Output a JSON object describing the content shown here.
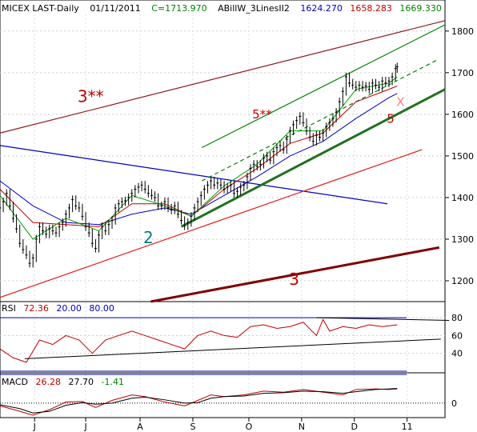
{
  "header": {
    "symbol": "MICEX LAST-Daily",
    "date": "01/11/2011",
    "close": "C=1713.970",
    "indicator": "ABillW_3LinesII2",
    "values": [
      "1624.270",
      "1658.283",
      "1669.330"
    ],
    "colors": {
      "close": "#008000",
      "v1": "#0000c0",
      "v2": "#c00000",
      "v3": "#008000"
    }
  },
  "rsi_panel": {
    "name": "RSI",
    "value": "72.36",
    "low": "20.00",
    "high": "80.00"
  },
  "macd_panel": {
    "name": "MACD",
    "value": "26.28",
    "signal": "27.70",
    "hist": "-1.41"
  },
  "chart_data": [
    {
      "type": "candlestick",
      "title": "MICEX LAST-Daily",
      "ylim": [
        1150,
        1840
      ],
      "y_ticks": [
        "1800",
        "1700",
        "1600",
        "1500",
        "1400",
        "1300",
        "1200"
      ],
      "y_tick_values": [
        1800,
        1700,
        1600,
        1500,
        1400,
        1300,
        1200
      ],
      "x_ticks": [
        "J",
        "J",
        "A",
        "S",
        "O",
        "N",
        "D",
        "11"
      ],
      "x_tick_days": [
        42,
        104,
        170,
        234,
        302,
        366,
        430,
        494
      ],
      "x_range_days": [
        0,
        540
      ],
      "close_series": [
        [
          0,
          1375
        ],
        [
          4,
          1390
        ],
        [
          8,
          1410
        ],
        [
          12,
          1380
        ],
        [
          16,
          1350
        ],
        [
          20,
          1325
        ],
        [
          24,
          1290
        ],
        [
          28,
          1275
        ],
        [
          32,
          1262
        ],
        [
          36,
          1242
        ],
        [
          40,
          1255
        ],
        [
          44,
          1300
        ],
        [
          48,
          1330
        ],
        [
          52,
          1320
        ],
        [
          56,
          1312
        ],
        [
          60,
          1325
        ],
        [
          64,
          1320
        ],
        [
          68,
          1315
        ],
        [
          72,
          1330
        ],
        [
          76,
          1340
        ],
        [
          80,
          1360
        ],
        [
          84,
          1375
        ],
        [
          88,
          1395
        ],
        [
          92,
          1380
        ],
        [
          96,
          1375
        ],
        [
          100,
          1355
        ],
        [
          104,
          1330
        ],
        [
          108,
          1315
        ],
        [
          112,
          1290
        ],
        [
          116,
          1278
        ],
        [
          120,
          1310
        ],
        [
          124,
          1330
        ],
        [
          128,
          1320
        ],
        [
          132,
          1335
        ],
        [
          136,
          1345
        ],
        [
          140,
          1375
        ],
        [
          144,
          1385
        ],
        [
          148,
          1390
        ],
        [
          152,
          1392
        ],
        [
          156,
          1400
        ],
        [
          160,
          1410
        ],
        [
          164,
          1420
        ],
        [
          168,
          1425
        ],
        [
          172,
          1430
        ],
        [
          176,
          1420
        ],
        [
          180,
          1410
        ],
        [
          184,
          1405
        ],
        [
          188,
          1400
        ],
        [
          192,
          1380
        ],
        [
          196,
          1380
        ],
        [
          200,
          1390
        ],
        [
          204,
          1375
        ],
        [
          208,
          1370
        ],
        [
          212,
          1380
        ],
        [
          216,
          1360
        ],
        [
          220,
          1345
        ],
        [
          224,
          1332
        ],
        [
          228,
          1340
        ],
        [
          232,
          1355
        ],
        [
          236,
          1375
        ],
        [
          240,
          1390
        ],
        [
          244,
          1405
        ],
        [
          248,
          1420
        ],
        [
          252,
          1430
        ],
        [
          256,
          1440
        ],
        [
          260,
          1430
        ],
        [
          264,
          1435
        ],
        [
          268,
          1430
        ],
        [
          272,
          1420
        ],
        [
          276,
          1425
        ],
        [
          280,
          1430
        ],
        [
          284,
          1410
        ],
        [
          288,
          1415
        ],
        [
          292,
          1425
        ],
        [
          296,
          1430
        ],
        [
          300,
          1450
        ],
        [
          304,
          1470
        ],
        [
          308,
          1480
        ],
        [
          312,
          1475
        ],
        [
          316,
          1480
        ],
        [
          320,
          1495
        ],
        [
          324,
          1500
        ],
        [
          328,
          1490
        ],
        [
          332,
          1510
        ],
        [
          336,
          1520
        ],
        [
          340,
          1525
        ],
        [
          344,
          1515
        ],
        [
          348,
          1540
        ],
        [
          352,
          1560
        ],
        [
          356,
          1575
        ],
        [
          360,
          1585
        ],
        [
          364,
          1595
        ],
        [
          368,
          1580
        ],
        [
          372,
          1560
        ],
        [
          376,
          1545
        ],
        [
          380,
          1535
        ],
        [
          384,
          1550
        ],
        [
          388,
          1545
        ],
        [
          392,
          1555
        ],
        [
          396,
          1570
        ],
        [
          400,
          1580
        ],
        [
          404,
          1590
        ],
        [
          408,
          1605
        ],
        [
          412,
          1630
        ],
        [
          416,
          1655
        ],
        [
          420,
          1690
        ],
        [
          424,
          1675
        ],
        [
          428,
          1670
        ],
        [
          432,
          1665
        ],
        [
          436,
          1670
        ],
        [
          440,
          1665
        ],
        [
          444,
          1668
        ],
        [
          448,
          1660
        ],
        [
          452,
          1675
        ],
        [
          456,
          1670
        ],
        [
          460,
          1665
        ],
        [
          464,
          1680
        ],
        [
          468,
          1675
        ],
        [
          472,
          1680
        ],
        [
          476,
          1690
        ],
        [
          480,
          1710
        ],
        [
          482,
          1714
        ]
      ],
      "series": [
        {
          "values": [
            [
              0,
              1440
            ],
            [
              40,
              1380
            ],
            [
              80,
              1340
            ],
            [
              120,
              1335
            ],
            [
              160,
              1360
            ],
            [
              200,
              1375
            ],
            [
              232,
              1360
            ],
            [
              272,
              1405
            ],
            [
              312,
              1450
            ],
            [
              352,
              1500
            ],
            [
              392,
              1535
            ],
            [
              432,
              1590
            ],
            [
              472,
              1640
            ],
            [
              482,
              1650
            ]
          ]
        },
        {
          "values": [
            [
              0,
              1420
            ],
            [
              40,
              1340
            ],
            [
              80,
              1335
            ],
            [
              120,
              1330
            ],
            [
              160,
              1385
            ],
            [
              200,
              1385
            ],
            [
              232,
              1355
            ],
            [
              272,
              1420
            ],
            [
              312,
              1470
            ],
            [
              352,
              1530
            ],
            [
              392,
              1555
            ],
            [
              432,
              1630
            ],
            [
              472,
              1660
            ],
            [
              482,
              1668
            ]
          ]
        },
        {
          "values": [
            [
              0,
              1405
            ],
            [
              40,
              1300
            ],
            [
              80,
              1350
            ],
            [
              120,
              1320
            ],
            [
              160,
              1405
            ],
            [
              200,
              1380
            ],
            [
              232,
              1355
            ],
            [
              272,
              1428
            ],
            [
              312,
              1480
            ],
            [
              352,
              1560
            ],
            [
              392,
              1560
            ],
            [
              432,
              1660
            ],
            [
              472,
              1675
            ],
            [
              482,
              1690
            ]
          ]
        }
      ],
      "lines": [
        {
          "label": "3**",
          "color": "#8b1a1a",
          "from": [
            0,
            1555
          ],
          "to": [
            540,
            1825
          ]
        },
        {
          "label": "",
          "color": "#0000c0",
          "from": [
            0,
            1525
          ],
          "to": [
            470,
            1385
          ]
        },
        {
          "label": "",
          "color": "#e02020",
          "from": [
            0,
            1160
          ],
          "to": [
            512,
            1515
          ]
        },
        {
          "label": "3",
          "color": "#800000",
          "from": [
            183,
            1100
          ],
          "to": [
            533,
            1280
          ]
        },
        {
          "label": "5**",
          "color": "#008000",
          "from": [
            245,
            1520
          ],
          "to": [
            540,
            1815
          ]
        },
        {
          "label": "",
          "color": "#008000",
          "dashed": true,
          "from": [
            245,
            1440
          ],
          "to": [
            530,
            1730
          ]
        },
        {
          "label": "2",
          "color": "#207020",
          "from": [
            220,
            1330
          ],
          "to": [
            540,
            1660
          ]
        }
      ],
      "annotations": [
        {
          "text": "3**",
          "day": 110,
          "price": 1630,
          "color": "#c00000"
        },
        {
          "text": "5**",
          "day": 318,
          "price": 1590,
          "color": "#c00000"
        },
        {
          "text": "2",
          "day": 180,
          "price": 1290,
          "color": "#008080"
        },
        {
          "text": "3",
          "day": 357,
          "price": 1190,
          "color": "#c00000"
        },
        {
          "text": "5",
          "day": 474,
          "price": 1580,
          "color": "#c00000"
        },
        {
          "text": "X",
          "day": 486,
          "price": 1620,
          "color": "#ff8080"
        }
      ]
    },
    {
      "type": "line",
      "title": "RSI",
      "ylim": [
        20,
        90
      ],
      "y_ticks": [
        "80",
        "60",
        "40"
      ],
      "y_tick_values": [
        80,
        60,
        40
      ],
      "series": [
        {
          "name": "RSI",
          "values": [
            [
              0,
              45
            ],
            [
              16,
              35
            ],
            [
              32,
              30
            ],
            [
              48,
              55
            ],
            [
              64,
              50
            ],
            [
              80,
              60
            ],
            [
              96,
              55
            ],
            [
              112,
              40
            ],
            [
              128,
              55
            ],
            [
              144,
              60
            ],
            [
              160,
              65
            ],
            [
              176,
              60
            ],
            [
              192,
              55
            ],
            [
              208,
              50
            ],
            [
              224,
              45
            ],
            [
              240,
              60
            ],
            [
              256,
              65
            ],
            [
              272,
              60
            ],
            [
              288,
              58
            ],
            [
              304,
              70
            ],
            [
              320,
              72
            ],
            [
              336,
              68
            ],
            [
              352,
              70
            ],
            [
              368,
              75
            ],
            [
              384,
              60
            ],
            [
              392,
              78
            ],
            [
              400,
              65
            ],
            [
              416,
              70
            ],
            [
              432,
              68
            ],
            [
              448,
              72
            ],
            [
              464,
              70
            ],
            [
              482,
              72
            ]
          ]
        }
      ],
      "levels": [
        80,
        20
      ]
    },
    {
      "type": "line",
      "title": "MACD",
      "ylim": [
        -25,
        35
      ],
      "y_ticks": [
        "0"
      ],
      "y_tick_values": [
        0
      ],
      "series": [
        {
          "name": "MACD",
          "values": [
            [
              0,
              -5
            ],
            [
              24,
              -15
            ],
            [
              40,
              -22
            ],
            [
              60,
              -12
            ],
            [
              80,
              2
            ],
            [
              100,
              3
            ],
            [
              116,
              -8
            ],
            [
              136,
              5
            ],
            [
              160,
              15
            ],
            [
              176,
              12
            ],
            [
              200,
              2
            ],
            [
              224,
              -5
            ],
            [
              240,
              5
            ],
            [
              256,
              15
            ],
            [
              272,
              12
            ],
            [
              296,
              15
            ],
            [
              320,
              22
            ],
            [
              344,
              20
            ],
            [
              368,
              25
            ],
            [
              392,
              20
            ],
            [
              416,
              15
            ],
            [
              432,
              25
            ],
            [
              456,
              26
            ],
            [
              472,
              25
            ],
            [
              482,
              26
            ]
          ]
        },
        {
          "name": "Signal",
          "values": [
            [
              0,
              -3
            ],
            [
              24,
              -10
            ],
            [
              40,
              -18
            ],
            [
              60,
              -15
            ],
            [
              80,
              -4
            ],
            [
              100,
              1
            ],
            [
              116,
              -2
            ],
            [
              136,
              0
            ],
            [
              160,
              9
            ],
            [
              176,
              11
            ],
            [
              200,
              6
            ],
            [
              224,
              0
            ],
            [
              240,
              1
            ],
            [
              256,
              9
            ],
            [
              272,
              12
            ],
            [
              296,
              13
            ],
            [
              320,
              18
            ],
            [
              344,
              19
            ],
            [
              368,
              22
            ],
            [
              392,
              21
            ],
            [
              416,
              18
            ],
            [
              432,
              21
            ],
            [
              456,
              25
            ],
            [
              472,
              26
            ],
            [
              482,
              27
            ]
          ]
        }
      ]
    }
  ]
}
